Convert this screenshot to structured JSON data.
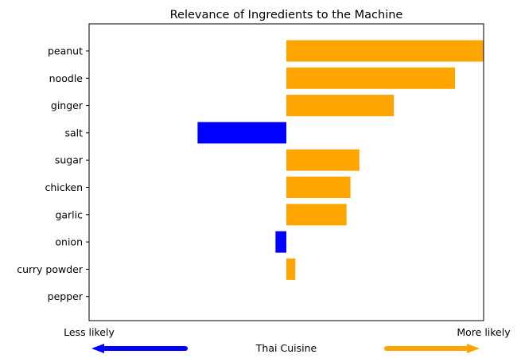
{
  "chart_data": {
    "type": "bar",
    "orientation": "horizontal",
    "title": "Relevance of Ingredients to the Machine",
    "categories": [
      "peanut",
      "noodle",
      "ginger",
      "salt",
      "sugar",
      "chicken",
      "garlic",
      "onion",
      "curry powder",
      "pepper"
    ],
    "values": [
      1.0,
      0.855,
      0.545,
      -0.45,
      0.37,
      0.325,
      0.305,
      -0.055,
      0.045,
      0.0
    ],
    "xlim": [
      -1.0,
      1.0
    ],
    "grid": false,
    "colors": {
      "positive": "#FFA500",
      "negative": "#0000FF"
    },
    "annotations": {
      "left_label": "Less likely",
      "right_label": "More likely",
      "center_label": "Thai Cuisine",
      "left_arrow_color": "#0000FF",
      "right_arrow_color": "#FFA500"
    }
  }
}
